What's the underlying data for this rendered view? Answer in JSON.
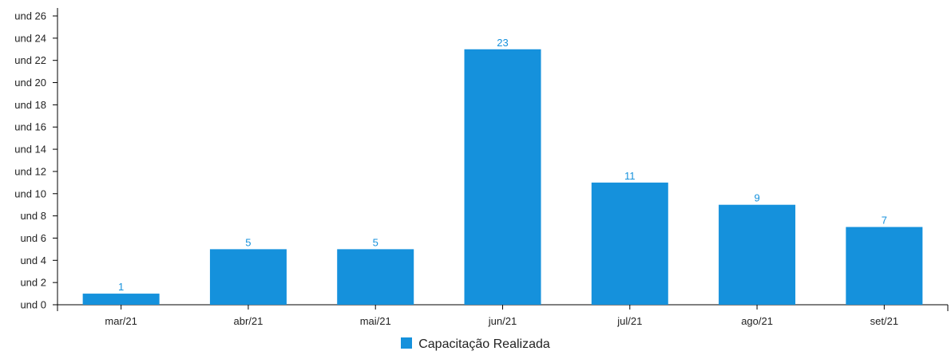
{
  "chart_data": {
    "type": "bar",
    "categories": [
      "mar/21",
      "abr/21",
      "mai/21",
      "jun/21",
      "jul/21",
      "ago/21",
      "set/21"
    ],
    "series": [
      {
        "name": "Capacitação Realizada",
        "values": [
          1,
          5,
          5,
          23,
          11,
          9,
          7
        ],
        "color": "#1591dc"
      }
    ],
    "y_tick_prefix": "und",
    "y_ticks": [
      0,
      2,
      4,
      6,
      8,
      10,
      12,
      14,
      16,
      18,
      20,
      22,
      24,
      26
    ],
    "ylim": [
      0,
      26
    ],
    "grid": false,
    "legend_position": "bottom-center",
    "data_labels": true,
    "title": "",
    "xlabel": "",
    "ylabel": ""
  }
}
